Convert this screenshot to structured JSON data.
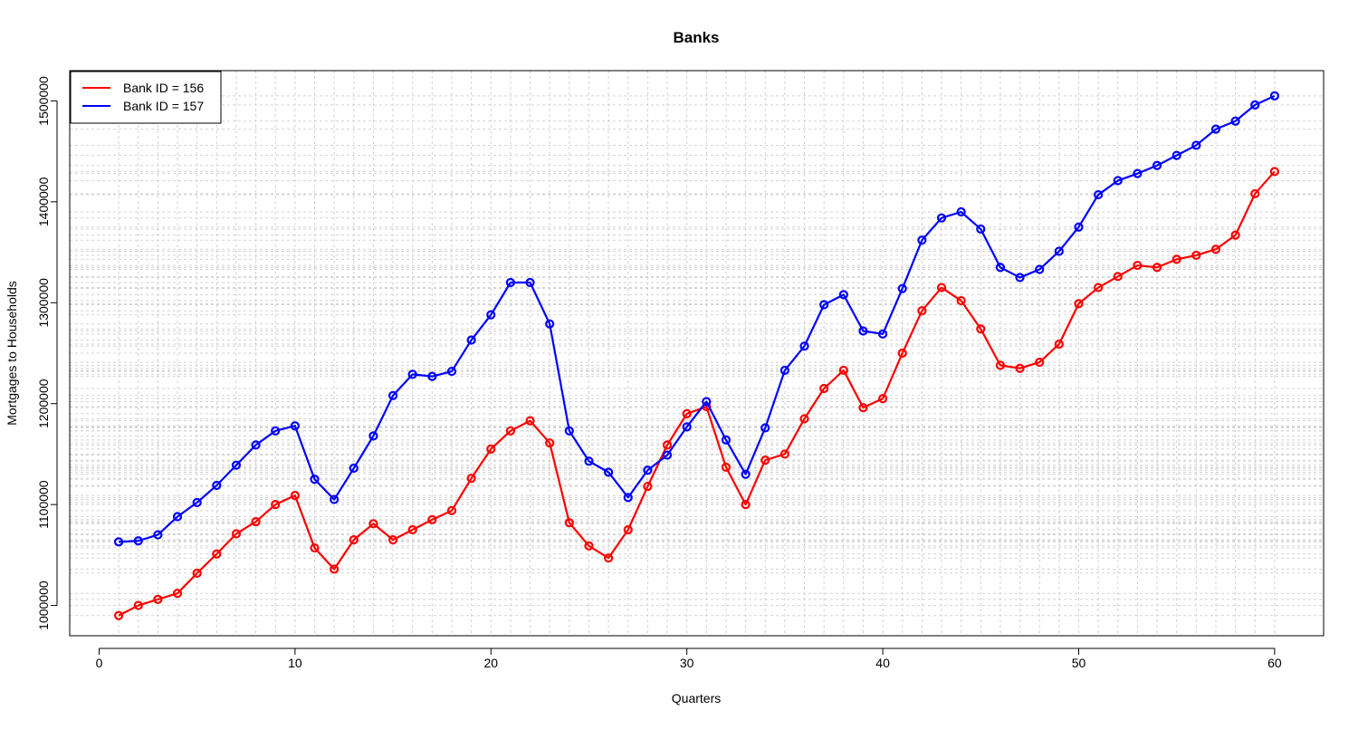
{
  "chart_data": {
    "type": "line",
    "title": "Banks",
    "xlabel": "Quarters",
    "ylabel": "Mortgages to Households",
    "xlim": [
      -1.5,
      62.5
    ],
    "ylim": [
      970000,
      1530000
    ],
    "xticks": [
      0,
      10,
      20,
      30,
      40,
      50,
      60
    ],
    "xtick_labels": [
      "0",
      "10",
      "20",
      "30",
      "40",
      "50",
      "60"
    ],
    "yticks": [
      1000000,
      1100000,
      1200000,
      1300000,
      1400000,
      1500000
    ],
    "ytick_labels": [
      "1000000",
      "1100000",
      "1200000",
      "1300000",
      "1400000",
      "1500000"
    ],
    "grid": true,
    "grid_style": "dotted light gray at every quarter and every data value",
    "legend_position": "top-left",
    "marker": "open circle",
    "x": [
      1,
      2,
      3,
      4,
      5,
      6,
      7,
      8,
      9,
      10,
      11,
      12,
      13,
      14,
      15,
      16,
      17,
      18,
      19,
      20,
      21,
      22,
      23,
      24,
      25,
      26,
      27,
      28,
      29,
      30,
      31,
      32,
      33,
      34,
      35,
      36,
      37,
      38,
      39,
      40,
      41,
      42,
      43,
      44,
      45,
      46,
      47,
      48,
      49,
      50,
      51,
      52,
      53,
      54,
      55,
      56,
      57,
      58,
      59,
      60
    ],
    "series": [
      {
        "name": "Bank ID = 156",
        "color": "#ff0000",
        "values": [
          990000,
          1000000,
          1006000,
          1012000,
          1032000,
          1051000,
          1071000,
          1083000,
          1100000,
          1109000,
          1057000,
          1036000,
          1065000,
          1081000,
          1065000,
          1075000,
          1085000,
          1094000,
          1126000,
          1155000,
          1173000,
          1183000,
          1161000,
          1082000,
          1059000,
          1047000,
          1075000,
          1118000,
          1159000,
          1190000,
          1197000,
          1137000,
          1100000,
          1144000,
          1150000,
          1185000,
          1215000,
          1233000,
          1196000,
          1205000,
          1250000,
          1292000,
          1315000,
          1302000,
          1274000,
          1238000,
          1235000,
          1241000,
          1259000,
          1299000,
          1315000,
          1326000,
          1337000,
          1335000,
          1343000,
          1347000,
          1353000,
          1367000,
          1408000,
          1430000
        ]
      },
      {
        "name": "Bank ID = 157",
        "color": "#0000ff",
        "values": [
          1063000,
          1064000,
          1070000,
          1088000,
          1102000,
          1119000,
          1139000,
          1159000,
          1173000,
          1178000,
          1125000,
          1105000,
          1136000,
          1168000,
          1208000,
          1229000,
          1227000,
          1232000,
          1263000,
          1288000,
          1320000,
          1320000,
          1279000,
          1173000,
          1143000,
          1132000,
          1107000,
          1134000,
          1149000,
          1177000,
          1202000,
          1164000,
          1130000,
          1176000,
          1233000,
          1257000,
          1298000,
          1308000,
          1272000,
          1269000,
          1314000,
          1362000,
          1384000,
          1390000,
          1373000,
          1335000,
          1325000,
          1333000,
          1351000,
          1375000,
          1407000,
          1421000,
          1428000,
          1436000,
          1446000,
          1456000,
          1472000,
          1480000,
          1496000,
          1505000
        ]
      }
    ]
  }
}
